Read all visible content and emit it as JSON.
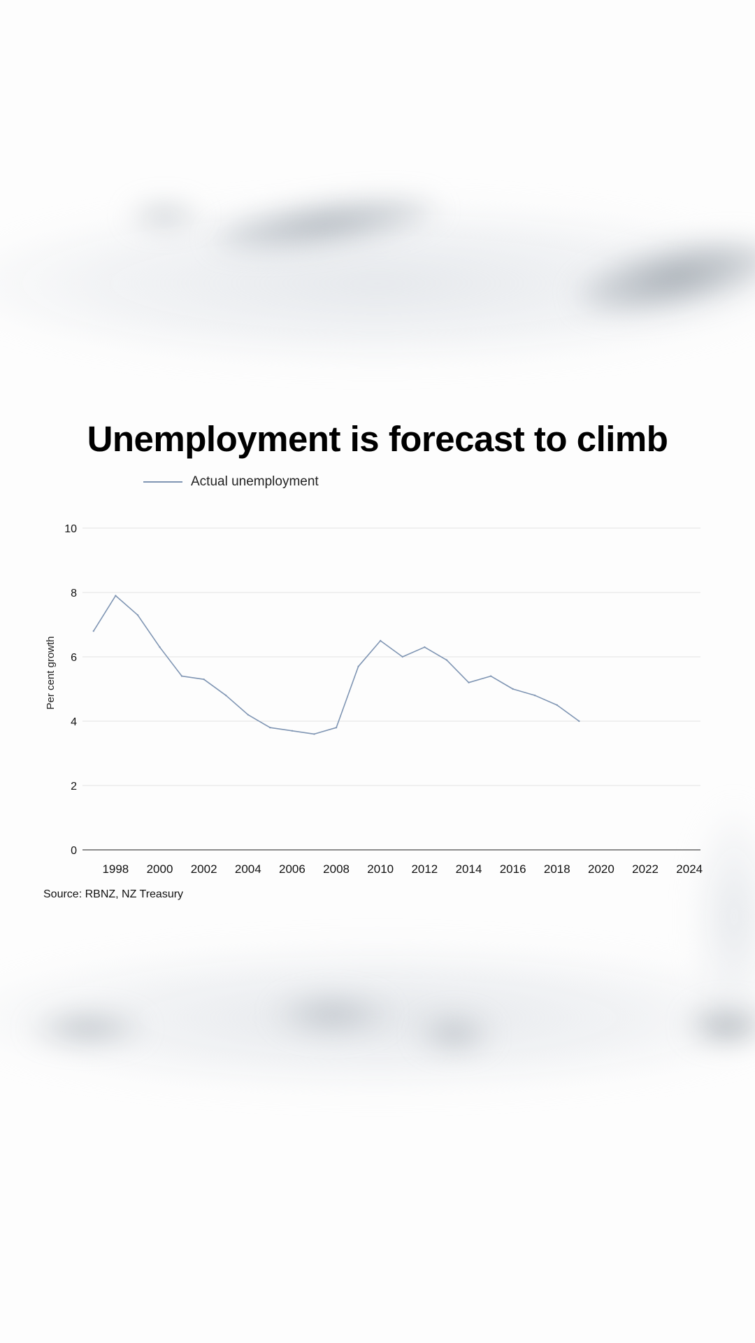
{
  "colors": {
    "series_line": "#7f95b3",
    "gridline": "#e3e3e3",
    "baseline": "#666666",
    "text": "#111111"
  },
  "chart_data": {
    "type": "line",
    "title": "Unemployment is forecast to climb",
    "xlabel": "",
    "ylabel": "Per cent growth",
    "xlim": [
      1996.5,
      2024.5
    ],
    "ylim": [
      0,
      10
    ],
    "x_ticks": [
      1998,
      2000,
      2002,
      2004,
      2006,
      2008,
      2010,
      2012,
      2014,
      2016,
      2018,
      2020,
      2022,
      2024
    ],
    "y_ticks": [
      0,
      2,
      4,
      6,
      8,
      10
    ],
    "grid": true,
    "legend_position": "top-left",
    "series": [
      {
        "name": "Actual unemployment",
        "x": [
          1997,
          1998,
          1999,
          2000,
          2001,
          2002,
          2003,
          2004,
          2005,
          2006,
          2007,
          2008,
          2009,
          2010,
          2011,
          2012,
          2013,
          2014,
          2015,
          2016,
          2017,
          2018,
          2019
        ],
        "values": [
          6.8,
          7.9,
          7.3,
          6.3,
          5.4,
          5.3,
          4.8,
          4.2,
          3.8,
          3.7,
          3.6,
          3.8,
          5.7,
          6.5,
          6.0,
          6.3,
          5.9,
          5.2,
          5.4,
          5.0,
          4.8,
          4.5,
          4.0
        ]
      }
    ],
    "source": "Source: RBNZ, NZ Treasury"
  }
}
